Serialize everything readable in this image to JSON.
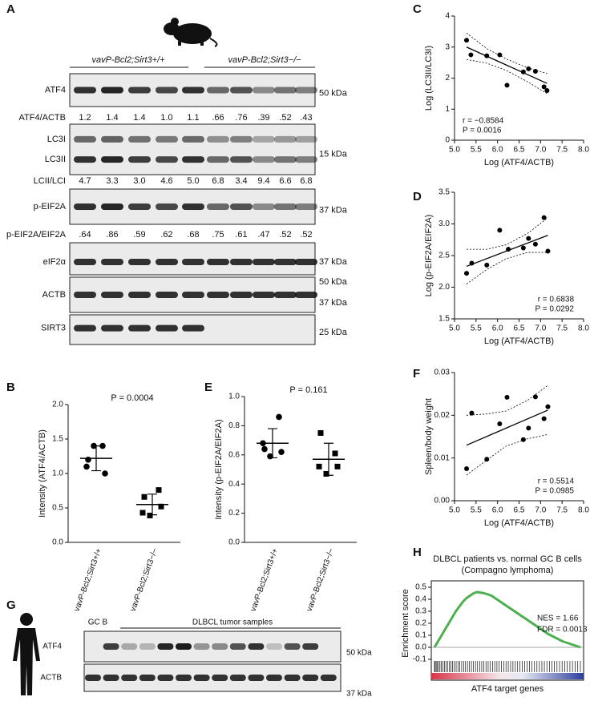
{
  "panels": [
    "A",
    "B",
    "C",
    "D",
    "E",
    "F",
    "G",
    "H"
  ],
  "blot_a": {
    "groups": [
      "vavP-Bcl2;Sirt3+/+",
      "vavP-Bcl2;Sirt3−/−"
    ],
    "rows": [
      {
        "labels": [
          "ATF4"
        ],
        "markers": [
          "50 kDa"
        ]
      },
      {
        "labels": [
          "LC3I",
          "LC3II"
        ],
        "markers": [
          "15 kDa"
        ]
      },
      {
        "labels": [
          "p-EIF2A"
        ],
        "markers": [
          "37 kDa"
        ]
      },
      {
        "labels": [
          "eIF2α"
        ],
        "markers": [
          "37 kDa"
        ]
      },
      {
        "labels": [
          "ACTB"
        ],
        "markers": [
          "50 kDa",
          "37 kDa"
        ]
      },
      {
        "labels": [
          "SIRT3"
        ],
        "markers": [
          "25 kDa"
        ]
      }
    ],
    "ratios": [
      {
        "label": "ATF4/ACTB",
        "values": [
          "1.2",
          "1.4",
          "1.4",
          "1.0",
          "1.1",
          ".66",
          ".76",
          ".39",
          ".52",
          ".43"
        ]
      },
      {
        "label": "LCII/LCI",
        "values": [
          "4.7",
          "3.3",
          "3.0",
          "4.6",
          "5.0",
          "6.8",
          "3.4",
          "9.4",
          "6.6",
          "6.8"
        ]
      },
      {
        "label": "p-EIF2A/EIF2A",
        "values": [
          ".64",
          ".86",
          ".59",
          ".62",
          ".68",
          ".75",
          ".61",
          ".47",
          ".52",
          ".52"
        ]
      }
    ]
  },
  "blot_g": {
    "groups": [
      "GC B",
      "DLBCL tumor samples"
    ],
    "rows": [
      {
        "labels": [
          "ATF4"
        ],
        "markers": [
          "50 kDa"
        ]
      },
      {
        "labels": [
          "ACTB"
        ],
        "markers": [
          "37 kDa"
        ]
      }
    ]
  },
  "chart_data": [
    {
      "type": "dotplot",
      "ylabel": "Intensity (ATF4/ACTB)",
      "annotations": [
        "P = 0.0004"
      ],
      "annotation_corner": "top",
      "categories": [
        "vavP-Bcl2;Sirt3+/+",
        "vavP-Bcl2;Sirt3−/−"
      ],
      "groups": [
        {
          "values": [
            1.2,
            1.4,
            1.4,
            1.0,
            1.1
          ],
          "mean": 1.22,
          "error": 0.18,
          "marker": "circle"
        },
        {
          "values": [
            0.66,
            0.76,
            0.39,
            0.52,
            0.43
          ],
          "mean": 0.55,
          "error": 0.15,
          "marker": "square"
        }
      ],
      "color": "#000000",
      "ylim": [
        0,
        2
      ],
      "yticks": [
        {
          "value": 0,
          "label": "0.0"
        },
        0.5,
        {
          "value": 1,
          "label": "1.0"
        },
        1.5,
        {
          "value": 2,
          "label": "2.0"
        }
      ]
    },
    {
      "type": "scatter",
      "xlabel": "Log (ATF4/ACTB)",
      "ylabel": "Log (LC3II/LC3I)",
      "annotations": [
        "r = −0.8584",
        "P = 0.0016"
      ],
      "annotation_corner": "bottom-left",
      "x": [
        5.28,
        5.38,
        5.75,
        6.05,
        6.22,
        6.6,
        6.72,
        6.88,
        7.08,
        7.15
      ],
      "y": [
        3.22,
        2.75,
        2.72,
        2.75,
        1.77,
        2.2,
        2.3,
        2.22,
        1.72,
        1.6
      ],
      "fit": {
        "x": [
          5.28,
          7.15
        ],
        "y": [
          3.0,
          1.83
        ]
      },
      "band": {
        "x": [
          5.28,
          5.75,
          6.2,
          6.7,
          7.15
        ],
        "upper": [
          3.45,
          2.95,
          2.62,
          2.33,
          2.15
        ],
        "lower": [
          2.6,
          2.48,
          2.25,
          1.88,
          1.5
        ]
      },
      "color": "#000000",
      "xlim": [
        5,
        8
      ],
      "xticks": [
        {
          "value": 5,
          "label": "5.0"
        },
        5.5,
        {
          "value": 6,
          "label": "6.0"
        },
        6.5,
        {
          "value": 7,
          "label": "7.0"
        },
        7.5,
        {
          "value": 8,
          "label": "8.0"
        }
      ],
      "ylim": [
        0,
        4
      ],
      "yticks": [
        0,
        1,
        2,
        3,
        4
      ]
    },
    {
      "type": "scatter",
      "xlabel": "Log (ATF4/ACTB)",
      "ylabel": "Log (p-EIF2A/EIF2A)",
      "annotations": [
        "r = 0.6838",
        "P = 0.0292"
      ],
      "annotation_corner": "bottom-right",
      "x": [
        5.28,
        5.4,
        5.75,
        6.05,
        6.25,
        6.6,
        6.72,
        6.88,
        7.08,
        7.17
      ],
      "y": [
        2.22,
        2.38,
        2.35,
        2.9,
        2.6,
        2.62,
        2.77,
        2.68,
        3.1,
        2.57
      ],
      "fit": {
        "x": [
          5.28,
          7.17
        ],
        "y": [
          2.33,
          2.82
        ]
      },
      "band": {
        "x": [
          5.28,
          5.75,
          6.2,
          6.7,
          7.17
        ],
        "upper": [
          2.6,
          2.6,
          2.67,
          2.85,
          3.1
        ],
        "lower": [
          2.05,
          2.28,
          2.45,
          2.55,
          2.55
        ]
      },
      "color": "#000000",
      "xlim": [
        5,
        8
      ],
      "xticks": [
        {
          "value": 5,
          "label": "5.0"
        },
        5.5,
        {
          "value": 6,
          "label": "6.0"
        },
        6.5,
        {
          "value": 7,
          "label": "7.0"
        },
        7.5,
        {
          "value": 8,
          "label": "8.0"
        }
      ],
      "ylim": [
        1.5,
        3.5
      ],
      "yticks": [
        1.5,
        {
          "value": 2,
          "label": "2.0"
        },
        2.5,
        {
          "value": 3,
          "label": "3.0"
        },
        3.5
      ]
    },
    {
      "type": "dotplot",
      "ylabel": "Intensity (p-EIF2A/EIF2A)",
      "annotations": [
        "P = 0.161"
      ],
      "annotation_corner": "top",
      "categories": [
        "vavP-Bcl2;Sirt3+/+",
        "vavP-Bcl2;Sirt3−/−"
      ],
      "groups": [
        {
          "values": [
            0.64,
            0.86,
            0.59,
            0.62,
            0.68
          ],
          "mean": 0.68,
          "error": 0.1,
          "marker": "circle"
        },
        {
          "values": [
            0.75,
            0.61,
            0.47,
            0.52,
            0.52
          ],
          "mean": 0.57,
          "error": 0.11,
          "marker": "square"
        }
      ],
      "color": "#000000",
      "ylim": [
        0,
        1
      ],
      "yticks": [
        {
          "value": 0,
          "label": "0.0"
        },
        0.2,
        0.4,
        0.6,
        0.8,
        {
          "value": 1,
          "label": "1.0"
        }
      ]
    },
    {
      "type": "scatter",
      "xlabel": "Log (ATF4/ACTB)",
      "ylabel": "Spleen/body weight",
      "annotations": [
        "r = 0.5514",
        "P = 0.0985"
      ],
      "annotation_corner": "bottom-right",
      "x": [
        5.28,
        5.4,
        5.75,
        6.05,
        6.22,
        6.6,
        6.72,
        6.88,
        7.08,
        7.17
      ],
      "y": [
        0.0075,
        0.0205,
        0.0097,
        0.018,
        0.0242,
        0.0143,
        0.017,
        0.0243,
        0.0192,
        0.022
      ],
      "fit": {
        "x": [
          5.28,
          7.17
        ],
        "y": [
          0.013,
          0.0212
        ]
      },
      "band": {
        "x": [
          5.28,
          5.75,
          6.2,
          6.7,
          7.17
        ],
        "upper": [
          0.02,
          0.0203,
          0.021,
          0.0235,
          0.027
        ],
        "lower": [
          0.006,
          0.0095,
          0.0128,
          0.0145,
          0.0155
        ]
      },
      "color": "#000000",
      "xlim": [
        5,
        8
      ],
      "xticks": [
        {
          "value": 5,
          "label": "5.0"
        },
        5.5,
        {
          "value": 6,
          "label": "6.0"
        },
        6.5,
        {
          "value": 7,
          "label": "7.0"
        },
        7.5,
        {
          "value": 8,
          "label": "8.0"
        }
      ],
      "ylim": [
        0,
        0.03
      ],
      "yticks": [
        {
          "value": 0,
          "label": "0.00"
        },
        0.01,
        0.02,
        0.03
      ]
    },
    {
      "type": "line",
      "title": "DLBCL patients vs. normal GC B cells",
      "subtitle": "(Compagno lymphoma)",
      "ylabel": "Enrichment score",
      "xlabel": "ATF4 target genes",
      "annotations": [
        "NES = 1.66",
        "FDR = 0.0013"
      ],
      "annotation_corner": "right",
      "values": [
        0,
        0.05,
        0.1,
        0.15,
        0.2,
        0.25,
        0.3,
        0.34,
        0.38,
        0.41,
        0.43,
        0.45,
        0.46,
        0.455,
        0.45,
        0.44,
        0.43,
        0.41,
        0.39,
        0.37,
        0.35,
        0.33,
        0.31,
        0.29,
        0.27,
        0.25,
        0.23,
        0.21,
        0.19,
        0.17,
        0.15,
        0.13,
        0.11,
        0.095,
        0.08,
        0.065,
        0.05,
        0.04,
        0.03,
        0.02,
        0.01,
        0
      ],
      "color": "#4cb050",
      "ylim": [
        -0.1,
        0.5
      ],
      "yticks": [
        -0.1,
        {
          "value": 0,
          "label": "0.0"
        },
        0.1,
        0.2,
        0.3,
        0.4,
        0.5
      ]
    }
  ]
}
